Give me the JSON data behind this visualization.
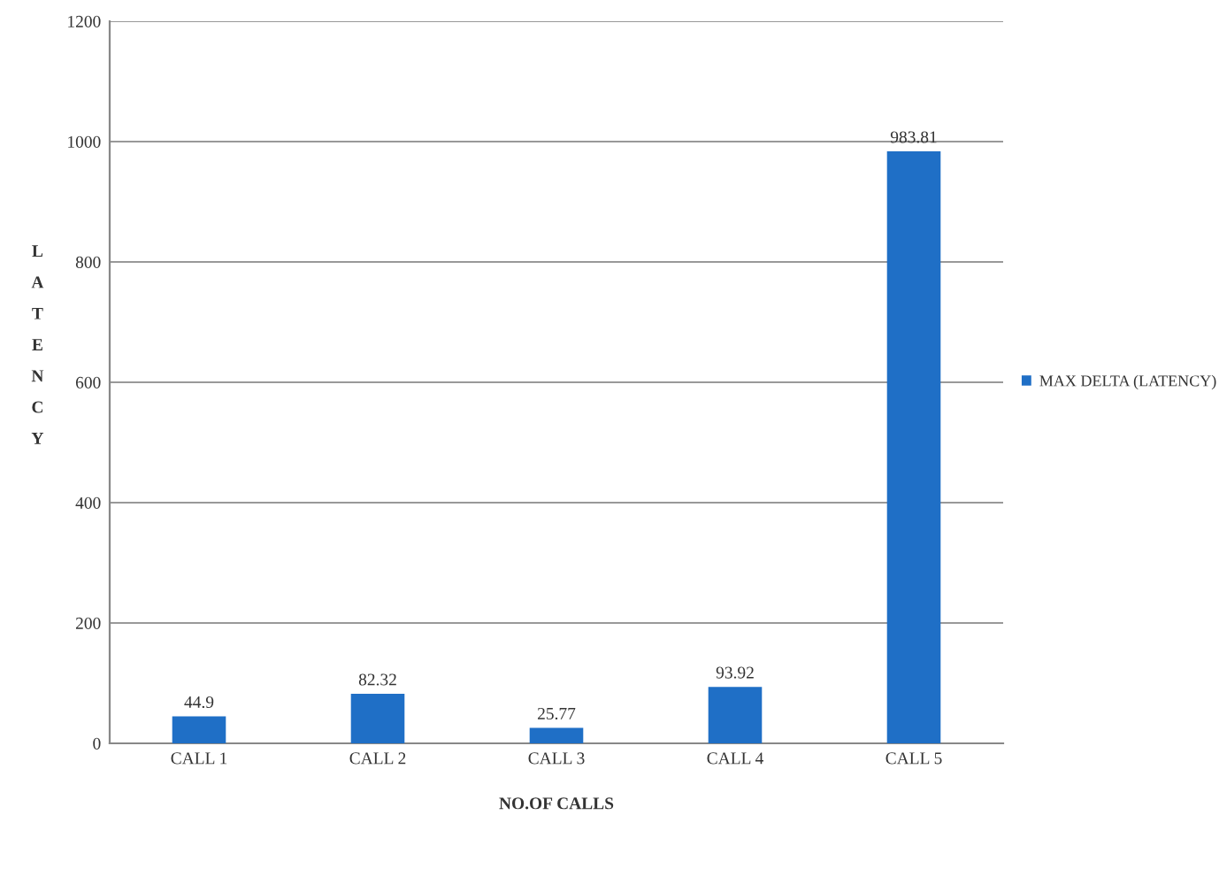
{
  "chart_data": {
    "type": "bar",
    "categories": [
      "CALL 1",
      "CALL 2",
      "CALL 3",
      "CALL 4",
      "CALL 5"
    ],
    "series": [
      {
        "name": "MAX DELTA (LATENCY)",
        "color": "#1f6fc6",
        "values": [
          44.9,
          82.32,
          25.77,
          93.92,
          983.81
        ]
      }
    ],
    "xlabel": "NO.OF CALLS",
    "ylabel": "LATENCY",
    "ylim": [
      0,
      1200
    ],
    "yticks": [
      0,
      200,
      400,
      600,
      800,
      1000,
      1200
    ],
    "grid": "y",
    "legend": "right",
    "data_labels": true
  }
}
